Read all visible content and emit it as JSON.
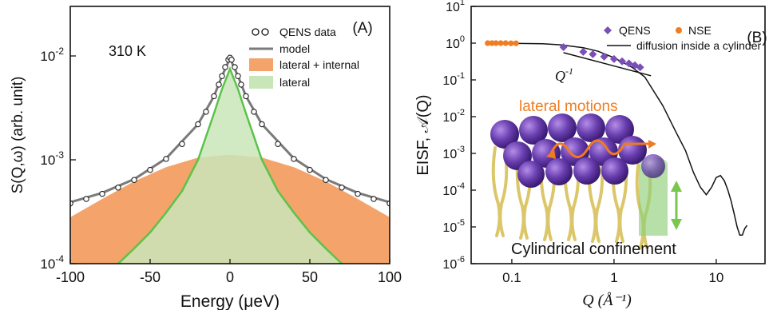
{
  "chart_data": [
    {
      "panel": "(A)",
      "type": "line",
      "annotation": "310 K",
      "xlabel": "Energy (μeV)",
      "ylabel": "S(Q,ω) (arb. unit)",
      "xlim": [
        -100,
        100
      ],
      "ylim": [
        0.0001,
        0.03
      ],
      "yscale": "log",
      "xticks": [
        "-100",
        "-50",
        "0",
        "50",
        "100"
      ],
      "yticks": [
        {
          "base": "10",
          "exp": "-4",
          "value": 0.0001
        },
        {
          "base": "10",
          "exp": "-3",
          "value": 0.001
        },
        {
          "base": "10",
          "exp": "-2",
          "value": 0.01
        }
      ],
      "legend": {
        "position": "top-right",
        "entries": [
          "QENS data",
          "model",
          "lateral + internal",
          "lateral"
        ]
      },
      "series": [
        {
          "name": "QENS data",
          "style": "open-circle",
          "color": "#222222",
          "x": [
            -100,
            -90,
            -80,
            -70,
            -60,
            -50,
            -40,
            -30,
            -20,
            -15,
            -10,
            -7,
            -5,
            -3,
            -1,
            0,
            1,
            3,
            5,
            7,
            10,
            15,
            20,
            30,
            40,
            50,
            60,
            70,
            80,
            90,
            100
          ],
          "y": [
            0.00038,
            0.00042,
            0.00047,
            0.00054,
            0.00064,
            0.0008,
            0.00102,
            0.00142,
            0.0022,
            0.0029,
            0.0041,
            0.0053,
            0.0064,
            0.0078,
            0.0092,
            0.0096,
            0.0092,
            0.0078,
            0.0064,
            0.0053,
            0.0041,
            0.0029,
            0.0022,
            0.00142,
            0.00102,
            0.0008,
            0.00064,
            0.00054,
            0.00047,
            0.00042,
            0.00038
          ]
        },
        {
          "name": "model",
          "style": "line",
          "color": "#7a7a7a",
          "x": [
            -100,
            -80,
            -60,
            -40,
            -20,
            -10,
            -5,
            0,
            5,
            10,
            20,
            40,
            60,
            80,
            100
          ],
          "y": [
            0.00039,
            0.00048,
            0.00065,
            0.00103,
            0.0022,
            0.0041,
            0.0064,
            0.0095,
            0.0064,
            0.0041,
            0.0022,
            0.00103,
            0.00065,
            0.00048,
            0.00039
          ]
        },
        {
          "name": "lateral + internal",
          "style": "filled-area",
          "color": "#f4a36b",
          "x": [
            -100,
            -80,
            -60,
            -40,
            -20,
            0,
            20,
            40,
            60,
            80,
            100
          ],
          "y": [
            0.00028,
            0.00042,
            0.00062,
            0.00085,
            0.00105,
            0.00112,
            0.00105,
            0.00085,
            0.00062,
            0.00042,
            0.00028
          ]
        },
        {
          "name": "lateral",
          "style": "filled-area",
          "color": "#c9e6b8",
          "edge_color": "#5cc24a",
          "x": [
            -70,
            -60,
            -50,
            -40,
            -30,
            -20,
            -10,
            -5,
            0,
            5,
            10,
            20,
            30,
            40,
            50,
            60,
            70
          ],
          "y": [
            0.0001,
            0.00014,
            0.0002,
            0.00031,
            0.0005,
            0.001,
            0.0028,
            0.0048,
            0.0075,
            0.0048,
            0.0028,
            0.001,
            0.0005,
            0.00031,
            0.0002,
            0.00014,
            0.0001
          ]
        }
      ]
    },
    {
      "panel": "(B)",
      "type": "scatter",
      "xlabel": "Q (Å⁻¹)",
      "ylabel": "EISF, 𝒜(Q)",
      "xscale": "log",
      "yscale": "log",
      "xlim": [
        0.04,
        30
      ],
      "ylim": [
        1e-06,
        10
      ],
      "xticks": [
        "0.1",
        "1",
        "10"
      ],
      "yticks": [
        {
          "base": "10",
          "exp": "-6",
          "value": 1e-06
        },
        {
          "base": "10",
          "exp": "-5",
          "value": 1e-05
        },
        {
          "base": "10",
          "exp": "-4",
          "value": 0.0001
        },
        {
          "base": "10",
          "exp": "-3",
          "value": 0.001
        },
        {
          "base": "10",
          "exp": "-2",
          "value": 0.01
        },
        {
          "base": "10",
          "exp": "-1",
          "value": 0.1
        },
        {
          "base": "10",
          "exp": "0",
          "value": 1
        },
        {
          "base": "10",
          "exp": "1",
          "value": 10
        }
      ],
      "legend": {
        "position": "top-right",
        "entries": [
          "QENS",
          "NSE",
          "diffusion inside a cylinder"
        ]
      },
      "annotations": {
        "slope_label": "Q",
        "slope_exp": "-1",
        "motion_label": "lateral motions",
        "confinement_label": "Cylindrical confinement"
      },
      "series": [
        {
          "name": "QENS",
          "style": "diamond",
          "color": "#7a4fb8",
          "x": [
            0.32,
            0.5,
            0.62,
            0.8,
            1.0,
            1.2,
            1.4,
            1.6,
            1.8
          ],
          "y": [
            0.78,
            0.58,
            0.5,
            0.43,
            0.37,
            0.32,
            0.28,
            0.25,
            0.22
          ]
        },
        {
          "name": "NSE",
          "style": "circle",
          "color": "#ef7d22",
          "x": [
            0.058,
            0.064,
            0.07,
            0.078,
            0.087,
            0.098,
            0.11
          ],
          "y": [
            1.0,
            1.0,
            1.0,
            1.0,
            1.0,
            0.99,
            0.99
          ]
        },
        {
          "name": "diffusion inside a cylinder",
          "style": "line",
          "color": "#111111",
          "x": [
            0.06,
            0.1,
            0.2,
            0.3,
            0.5,
            0.7,
            1.0,
            1.5,
            2.0,
            3.0,
            4.0,
            5.0,
            6.0,
            7.0,
            8.0,
            9.0,
            10.0,
            11.0,
            12.0,
            13.0,
            14.0,
            15.0,
            16.0,
            17.0,
            18.0,
            19.0,
            20.0
          ],
          "y": [
            1.0,
            0.99,
            0.96,
            0.9,
            0.75,
            0.6,
            0.4,
            0.22,
            0.12,
            0.02,
            0.004,
            0.0012,
            0.0003,
            0.00012,
            7.5e-05,
            0.00012,
            0.00022,
            0.00025,
            0.00018,
            0.0001,
            5e-05,
            2.2e-05,
            1e-05,
            6e-06,
            6e-06,
            9e-06,
            1.1e-05
          ]
        },
        {
          "name": "Q-1 guide",
          "style": "line",
          "color": "#111111",
          "x": [
            0.32,
            2.3
          ],
          "y": [
            0.55,
            0.13
          ]
        }
      ]
    }
  ]
}
